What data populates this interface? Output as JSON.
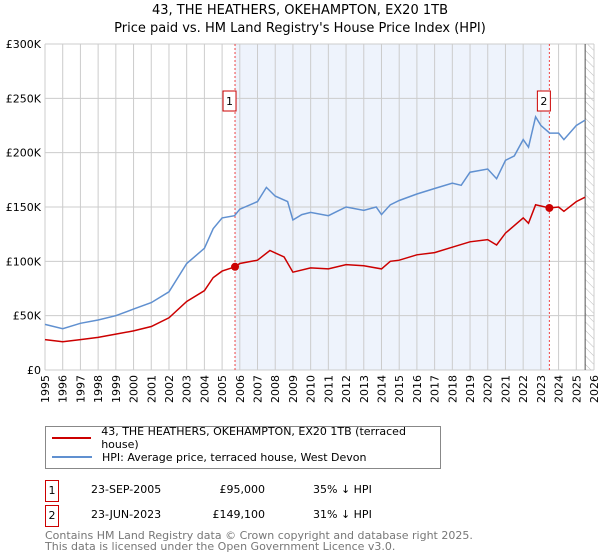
{
  "title": "43, THE HEATHERS, OKEHAMPTON, EX20 1TB",
  "subtitle": "Price paid vs. HM Land Registry's House Price Index (HPI)",
  "colors": {
    "property": "#cc0000",
    "hpi": "#6090d0",
    "shade": "#eef3fc",
    "grid": "#cccccc"
  },
  "chart_data": {
    "type": "line",
    "title": "43, THE HEATHERS, OKEHAMPTON, EX20 1TB",
    "xlim": [
      1995,
      2026
    ],
    "ylim": [
      0,
      300000
    ],
    "grid": true,
    "legend_placement": "below",
    "y_ticks": [
      {
        "v": 0,
        "label": "£0"
      },
      {
        "v": 50000,
        "label": "£50K"
      },
      {
        "v": 100000,
        "label": "£100K"
      },
      {
        "v": 150000,
        "label": "£150K"
      },
      {
        "v": 200000,
        "label": "£200K"
      },
      {
        "v": 250000,
        "label": "£250K"
      },
      {
        "v": 300000,
        "label": "£300K"
      }
    ],
    "x_ticks": [
      "1995",
      "1996",
      "1997",
      "1998",
      "1999",
      "2000",
      "2001",
      "2002",
      "2003",
      "2004",
      "2005",
      "2006",
      "2007",
      "2008",
      "2009",
      "2010",
      "2011",
      "2012",
      "2013",
      "2014",
      "2015",
      "2016",
      "2017",
      "2018",
      "2019",
      "2020",
      "2021",
      "2022",
      "2023",
      "2024",
      "2025",
      "2026"
    ],
    "shaded_range": [
      2005.73,
      2023.48
    ],
    "forecast_hatch_from": 2025.5,
    "series": [
      {
        "name": "43, THE HEATHERS, OKEHAMPTON, EX20 1TB (terraced house)",
        "color": "#cc0000",
        "x": [
          1995,
          1996,
          1997,
          1998,
          1999,
          2000,
          2001,
          2002,
          2003,
          2004,
          2004.5,
          2005,
          2005.73,
          2006,
          2007,
          2007.7,
          2008.5,
          2009,
          2010,
          2011,
          2012,
          2013,
          2014,
          2014.5,
          2015,
          2016,
          2017,
          2018,
          2019,
          2020,
          2020.5,
          2021,
          2022,
          2022.3,
          2022.7,
          2023.48,
          2024,
          2024.3,
          2025,
          2025.5
        ],
        "y": [
          28000,
          26000,
          28000,
          30000,
          33000,
          36000,
          40000,
          48000,
          63000,
          73000,
          85000,
          91000,
          95000,
          98000,
          101000,
          110000,
          104000,
          90000,
          94000,
          93000,
          97000,
          96000,
          93000,
          100000,
          101000,
          106000,
          108000,
          113000,
          118000,
          120000,
          115000,
          126000,
          140000,
          135000,
          152000,
          149100,
          150000,
          146000,
          155000,
          159000
        ]
      },
      {
        "name": "HPI: Average price, terraced house, West Devon",
        "color": "#6090d0",
        "x": [
          1995,
          1996,
          1997,
          1998,
          1999,
          2000,
          2001,
          2002,
          2003,
          2004,
          2004.5,
          2005,
          2005.7,
          2006,
          2007,
          2007.5,
          2008,
          2008.7,
          2009,
          2009.5,
          2010,
          2011,
          2011.5,
          2012,
          2013,
          2013.7,
          2014,
          2014.5,
          2015,
          2016,
          2017,
          2018,
          2018.5,
          2019,
          2020,
          2020.5,
          2021,
          2021.5,
          2022,
          2022.3,
          2022.7,
          2023,
          2023.5,
          2024,
          2024.3,
          2025,
          2025.5
        ],
        "y": [
          42000,
          38000,
          43000,
          46000,
          50000,
          56000,
          62000,
          72000,
          98000,
          112000,
          130000,
          140000,
          142000,
          148000,
          155000,
          168000,
          160000,
          155000,
          138000,
          143000,
          145000,
          142000,
          146000,
          150000,
          147000,
          150000,
          143000,
          152000,
          156000,
          162000,
          167000,
          172000,
          170000,
          182000,
          185000,
          176000,
          193000,
          197000,
          212000,
          205000,
          233000,
          225000,
          218000,
          218000,
          212000,
          225000,
          230000
        ]
      }
    ],
    "annotations": [
      {
        "label": "1",
        "x": 2005.73,
        "y": 95000
      },
      {
        "label": "2",
        "x": 2023.48,
        "y": 149100
      }
    ]
  },
  "legend": [
    {
      "label": "43, THE HEATHERS, OKEHAMPTON, EX20 1TB (terraced house)"
    },
    {
      "label": "HPI: Average price, terraced house, West Devon"
    }
  ],
  "transactions": [
    {
      "num": "1",
      "date": "23-SEP-2005",
      "price": "£95,000",
      "diff": "35% ↓ HPI"
    },
    {
      "num": "2",
      "date": "23-JUN-2023",
      "price": "£149,100",
      "diff": "31% ↓ HPI"
    }
  ],
  "footer": {
    "line1": "Contains HM Land Registry data © Crown copyright and database right 2025.",
    "line2": "This data is licensed under the Open Government Licence v3.0."
  }
}
